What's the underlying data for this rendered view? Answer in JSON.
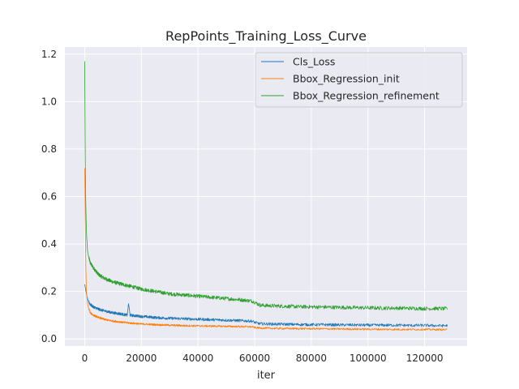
{
  "chart_data": {
    "type": "line",
    "title": "RepPoints_Training_Loss_Curve",
    "xlabel": "iter",
    "ylabel": "",
    "xlim": [
      -7000,
      135000
    ],
    "ylim": [
      -0.03,
      1.23
    ],
    "xticks": [
      0,
      20000,
      40000,
      60000,
      80000,
      100000,
      120000
    ],
    "xtick_labels": [
      "0",
      "20000",
      "40000",
      "60000",
      "80000",
      "100000",
      "120000"
    ],
    "yticks": [
      0.0,
      0.2,
      0.4,
      0.6,
      0.8,
      1.0,
      1.2
    ],
    "ytick_labels": [
      "0.0",
      "0.2",
      "0.4",
      "0.6",
      "0.8",
      "1.0",
      "1.2"
    ],
    "grid": true,
    "legend_position": "top-right",
    "background": "#eaeaf2",
    "series": [
      {
        "name": "Cls_Loss",
        "color": "#1f77b4",
        "x": [
          0,
          300,
          600,
          1000,
          1500,
          2000,
          3000,
          4000,
          5000,
          7000,
          10000,
          13000,
          15000,
          15500,
          16000,
          20000,
          25000,
          30000,
          35000,
          40000,
          45000,
          50000,
          55000,
          59000,
          60000,
          61000,
          62000,
          65000,
          70000,
          75000,
          80000,
          85000,
          90000,
          95000,
          100000,
          105000,
          110000,
          115000,
          120000,
          125000,
          128000
        ],
        "y": [
          0.23,
          0.21,
          0.19,
          0.17,
          0.155,
          0.145,
          0.135,
          0.13,
          0.125,
          0.118,
          0.11,
          0.105,
          0.1,
          0.15,
          0.1,
          0.095,
          0.09,
          0.087,
          0.085,
          0.083,
          0.081,
          0.079,
          0.077,
          0.075,
          0.07,
          0.066,
          0.064,
          0.063,
          0.062,
          0.061,
          0.06,
          0.06,
          0.059,
          0.059,
          0.058,
          0.058,
          0.058,
          0.057,
          0.057,
          0.056,
          0.056
        ],
        "noise": 0.006
      },
      {
        "name": "Bbox_Regression_init",
        "color": "#ff7f0e",
        "x": [
          0,
          200,
          400,
          600,
          1000,
          1500,
          2000,
          3000,
          4000,
          5000,
          7000,
          10000,
          15000,
          20000,
          25000,
          30000,
          35000,
          40000,
          45000,
          50000,
          55000,
          59000,
          60000,
          62000,
          65000,
          70000,
          80000,
          90000,
          100000,
          110000,
          120000,
          128000
        ],
        "y": [
          0.72,
          0.5,
          0.3,
          0.2,
          0.15,
          0.125,
          0.11,
          0.1,
          0.095,
          0.09,
          0.082,
          0.075,
          0.068,
          0.063,
          0.06,
          0.058,
          0.056,
          0.055,
          0.054,
          0.053,
          0.052,
          0.051,
          0.048,
          0.046,
          0.045,
          0.044,
          0.043,
          0.042,
          0.041,
          0.04,
          0.04,
          0.039
        ],
        "noise": 0.004
      },
      {
        "name": "Bbox_Regression_refinement",
        "color": "#2ca02c",
        "x": [
          0,
          100,
          200,
          300,
          500,
          700,
          1000,
          1500,
          2000,
          3000,
          4000,
          5000,
          7000,
          10000,
          15000,
          20000,
          25000,
          30000,
          35000,
          40000,
          45000,
          50000,
          55000,
          59000,
          60000,
          61000,
          62000,
          65000,
          70000,
          75000,
          80000,
          85000,
          90000,
          95000,
          100000,
          105000,
          110000,
          115000,
          120000,
          125000,
          128000
        ],
        "y": [
          1.17,
          0.95,
          0.75,
          0.62,
          0.5,
          0.43,
          0.37,
          0.34,
          0.32,
          0.3,
          0.285,
          0.27,
          0.255,
          0.24,
          0.225,
          0.21,
          0.2,
          0.19,
          0.185,
          0.18,
          0.175,
          0.17,
          0.165,
          0.16,
          0.155,
          0.148,
          0.142,
          0.14,
          0.138,
          0.136,
          0.135,
          0.134,
          0.133,
          0.132,
          0.131,
          0.13,
          0.13,
          0.129,
          0.128,
          0.128,
          0.127
        ],
        "noise": 0.008
      }
    ]
  }
}
